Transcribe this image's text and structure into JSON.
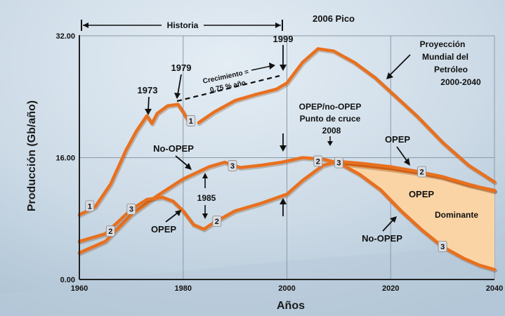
{
  "chart_data": {
    "type": "line",
    "xlabel": "Años",
    "ylabel": "Producción (Gb/año)",
    "xlim": [
      1960,
      2040
    ],
    "ylim": [
      0,
      32
    ],
    "x_ticks": [
      "1960",
      "1980",
      "2000",
      "2020",
      "2040"
    ],
    "y_ticks": [
      "0.00",
      "16.00",
      "32.00"
    ],
    "grid": true,
    "series": [
      {
        "name": "1",
        "x": [
          1960,
          1963,
          1966,
          1969,
          1971,
          1973,
          1974,
          1975,
          1977,
          1979,
          1980,
          1981
        ],
        "y": [
          8.5,
          9.5,
          12.5,
          17.0,
          19.5,
          21.5,
          20.5,
          21.8,
          22.8,
          23.0,
          22.0,
          20.8
        ]
      },
      {
        "name": "1",
        "x": [
          1983,
          1986,
          1990,
          1994,
          1998,
          2000,
          2003,
          2006,
          2009,
          2013,
          2017,
          2021,
          2025,
          2030,
          2035,
          2040
        ],
        "y": [
          20.6,
          22.0,
          23.5,
          24.3,
          25.0,
          25.8,
          28.5,
          30.3,
          30.0,
          28.5,
          26.5,
          24.0,
          21.5,
          18.0,
          15.0,
          12.8
        ]
      },
      {
        "name": "3",
        "x": [
          1960,
          1965,
          1970,
          1975,
          1980,
          1985,
          1988,
          1991,
          1995,
          1999,
          2003,
          2007,
          2010,
          2015,
          2020,
          2025,
          2030,
          2035,
          2040
        ],
        "y": [
          3.5,
          5.0,
          8.5,
          11.0,
          13.2,
          14.8,
          15.4,
          14.7,
          15.0,
          15.4,
          16.0,
          15.8,
          15.3,
          14.9,
          14.5,
          14.0,
          13.4,
          12.4,
          11.7
        ]
      },
      {
        "name": "2",
        "x": [
          1960,
          1965,
          1970,
          1973,
          1976,
          1978,
          1980,
          1982,
          1984,
          1986,
          1990,
          1995,
          2000,
          2003,
          2007,
          2010,
          2015,
          2020,
          2025,
          2030,
          2035,
          2040
        ],
        "y": [
          5.0,
          6.0,
          9.2,
          10.5,
          10.8,
          10.3,
          9.0,
          7.2,
          6.6,
          7.5,
          9.0,
          10.0,
          11.2,
          13.0,
          15.0,
          15.5,
          15.2,
          14.8,
          14.2,
          13.5,
          12.5,
          11.6
        ]
      },
      {
        "name": "3",
        "x": [
          2010,
          2014,
          2018,
          2022,
          2026,
          2030,
          2034,
          2037,
          2040
        ],
        "y": [
          15.3,
          13.8,
          11.8,
          9.0,
          6.5,
          4.3,
          2.8,
          1.9,
          1.3
        ]
      }
    ],
    "fill_region_color": "#fbd4a6",
    "line_color": "#e8701f",
    "annotations": {
      "historia": "Historia",
      "y1999": "1999",
      "pico": "2006 Pico",
      "proyeccion": [
        "Proyección",
        "Mundial del",
        "Petróleo",
        "2000-2040"
      ],
      "y1979": "1979",
      "y1973": "1973",
      "crecimiento": [
        "Crecimiento =",
        "0,75 % año"
      ],
      "cruce": [
        "OPEP/no-OPEP",
        "Punto de cruce",
        "2008"
      ],
      "no_opep_upper": "No-OPEP",
      "opep_left": "OPEP",
      "y1985": "1985",
      "opep_right": "OPEP",
      "opep_dominante": [
        "OPEP",
        "Dominante"
      ],
      "no_opep_right": "No-OPEP"
    },
    "badges": {
      "b1a": "1",
      "b1b": "1",
      "b2a": "2",
      "b2b": "2",
      "b2c": "2",
      "b2d": "2",
      "b3a": "3",
      "b3b": "3",
      "b3c": "3",
      "b3d": "3"
    }
  }
}
